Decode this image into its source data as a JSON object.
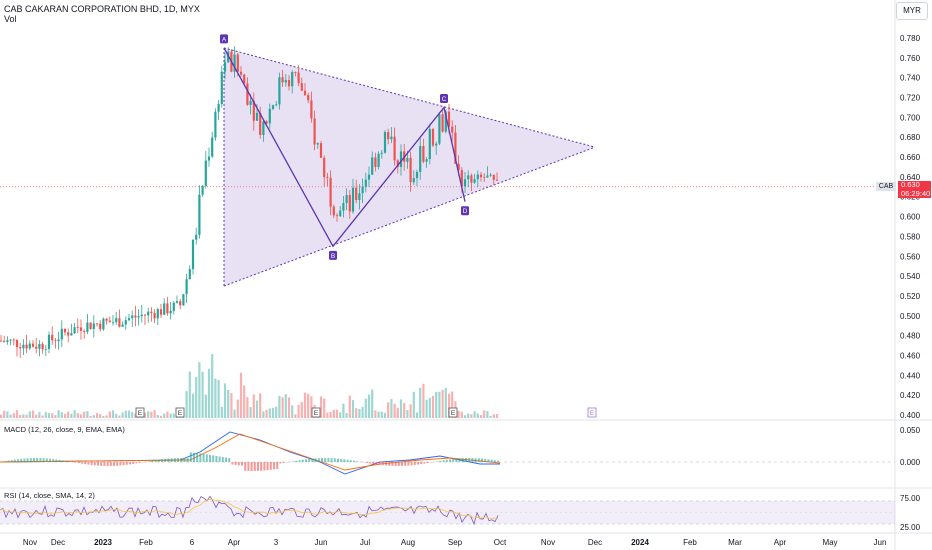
{
  "header": {
    "title": "CAB CAKARAN CORPORATION BHD, 1D, MYX",
    "volume_label": "Vol",
    "currency": "MYR"
  },
  "price_tag": {
    "symbol": "CAB",
    "price": "0.630",
    "countdown": "06:29:40"
  },
  "colors": {
    "up": "#26a69a",
    "down": "#ef5350",
    "pattern_fill": "#b39ddb",
    "pattern_line": "#5e35b1",
    "rsi": "#7e57c2",
    "macd": "#2962ff",
    "signal": "#ff6d00"
  },
  "chart_data": {
    "type": "candlestick",
    "price_axis": {
      "ticks": [
        "0.400",
        "0.420",
        "0.440",
        "0.460",
        "0.480",
        "0.500",
        "0.520",
        "0.540",
        "0.560",
        "0.580",
        "0.600",
        "0.620",
        "0.640",
        "0.660",
        "0.680",
        "0.700",
        "0.720",
        "0.740",
        "0.760",
        "0.780"
      ],
      "range": [
        0.4,
        0.78
      ]
    },
    "x_axis": {
      "ticks": [
        "Nov",
        "Dec",
        "2023",
        "Feb",
        "6",
        "Apr",
        "3",
        "Jun",
        "Jul",
        "Aug",
        "Sep",
        "Oct",
        "Nov",
        "Dec",
        "2024",
        "Feb",
        "Mar",
        "Apr",
        "May",
        "Jun"
      ]
    },
    "pattern_points": [
      {
        "label": "A",
        "price": 0.77
      },
      {
        "label": "B",
        "price": 0.57
      },
      {
        "label": "C",
        "price": 0.71
      },
      {
        "label": "D",
        "price": 0.615
      }
    ],
    "earnings_markers": [
      "E",
      "E",
      "E",
      "E",
      "E"
    ],
    "macd": {
      "label": "MACD (12, 26, close, 9, EMA, EMA)",
      "ticks": [
        "0.050",
        "0.000"
      ]
    },
    "rsi": {
      "label": "RSI (14, close, SMA, 14, 2)",
      "ticks": [
        "75.00",
        "25.00"
      ],
      "bands": [
        70,
        30
      ]
    }
  }
}
